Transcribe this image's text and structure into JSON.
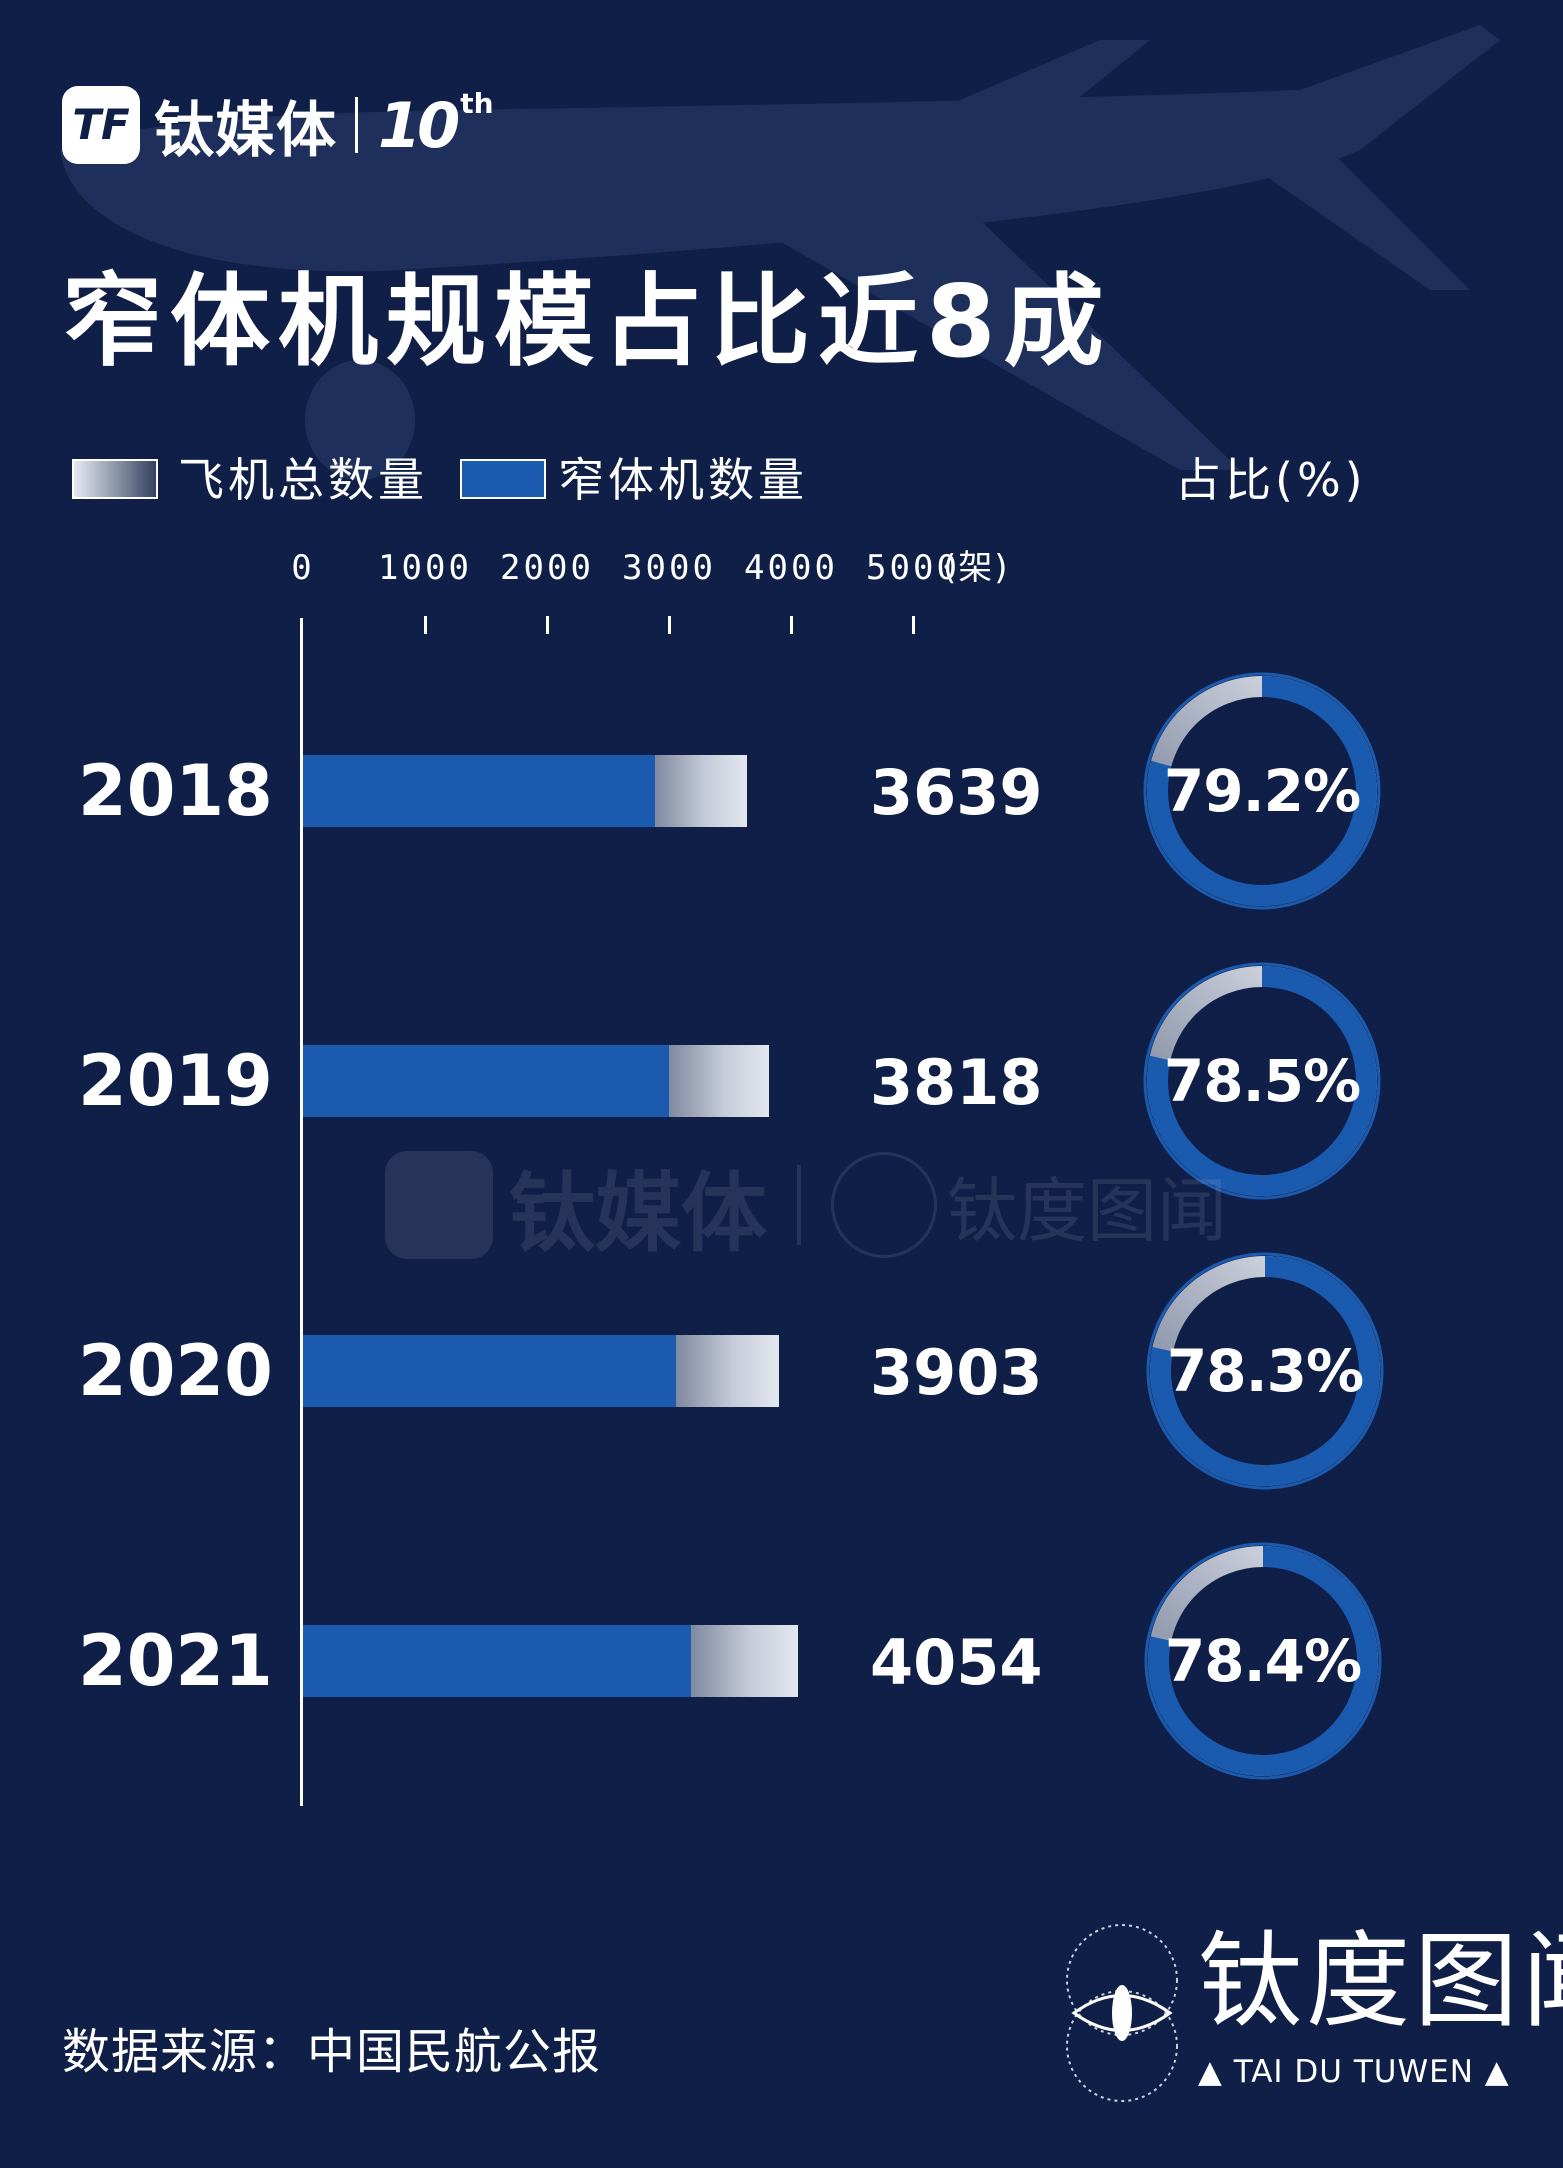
{
  "header": {
    "logo_mark": "TF",
    "logo_text": "钛媒体",
    "anniversary_num": "10",
    "anniversary_suffix": "th"
  },
  "title": "窄体机规模占比近8成",
  "legend": {
    "total_label": "飞机总数量",
    "narrow_label": "窄体机数量",
    "pct_label": "占比(%)"
  },
  "colors": {
    "background": "#0f1f47",
    "narrow_body": "#1a5bb0",
    "total_gradient_light": "#e4e7ee",
    "total_gradient_dark": "#7f89a0",
    "donut_remainder": "#9aa3b8"
  },
  "chart_data": {
    "type": "bar",
    "title": "窄体机规模占比近8成",
    "orientation": "horizontal",
    "categories": [
      "2018",
      "2019",
      "2020",
      "2021"
    ],
    "series": [
      {
        "name": "窄体机数量",
        "values": [
          2882,
          2997,
          3056,
          3178
        ]
      },
      {
        "name": "飞机总数量",
        "values": [
          3639,
          3818,
          3903,
          4054
        ]
      }
    ],
    "percentages": [
      "79.2%",
      "78.5%",
      "78.3%",
      "78.4%"
    ],
    "percent_values": [
      79.2,
      78.5,
      78.3,
      78.4
    ],
    "total_labels": [
      "3639",
      "3818",
      "3903",
      "4054"
    ],
    "x_ticks": [
      "0",
      "1000",
      "2000",
      "3000",
      "4000",
      "5000"
    ],
    "x_tick_values": [
      0,
      1000,
      2000,
      3000,
      4000,
      5000
    ],
    "x_unit": "(架)",
    "xlim": [
      0,
      5000
    ],
    "xlabel": "",
    "ylabel": ""
  },
  "watermark": {
    "brand_a": "钛媒体",
    "brand_b": "钛度图闻"
  },
  "footer": {
    "source": "数据来源：中国民航公报",
    "brand_name": "钛度图闻",
    "brand_sub": "▲ TAI DU TUWEN ▲"
  }
}
